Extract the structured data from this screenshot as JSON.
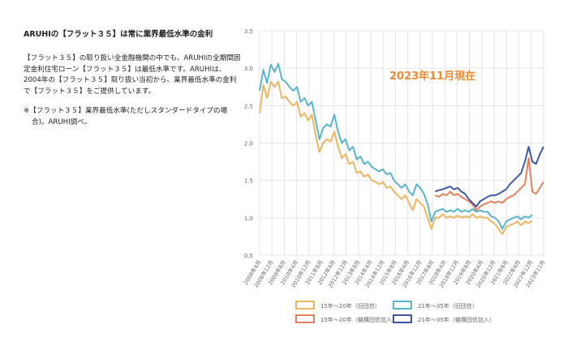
{
  "text": {
    "headline": "ARUHIの【フラット３５】は常に業界最低水準の金利",
    "body": "【フラット３５】の取り扱い全金融機関の中でも、ARUHIの全期間固定金利住宅ローン【フラット３５】は最低水準です。ARUHIは、2004年の【フラット３５】取り扱い当初から、業界最低水準の金利で【フラット３５】をご提供しています。",
    "note": "※【フラット３５】業界最低水準(ただしスタンダードタイプの場合)。ARUHI調べ。"
  },
  "chart_data": {
    "type": "line",
    "annotation": "2023年11月現在",
    "ylim": [
      0.5,
      3.5
    ],
    "y_ticks": [
      "0.5",
      "1.0",
      "1.5",
      "2.0",
      "2.5",
      "3.0",
      "3.5"
    ],
    "x_tick_labels": [
      "2008年4月",
      "2008年12月",
      "2009年8月",
      "2010年4月",
      "2010年12月",
      "2011年8月",
      "2012年4月",
      "2012年12月",
      "2013年8月",
      "2014年4月",
      "2014年12月",
      "2015年8月",
      "2016年4月",
      "2016年12月",
      "2017年8月",
      "2018年4月",
      "2018年12月",
      "2019年8月",
      "2020年4月",
      "2020年12月",
      "2021年8月",
      "2022年4月",
      "2022年12月",
      "2023年11月"
    ],
    "grid": true,
    "legend_position": "bottom",
    "series": [
      {
        "name": "15年～20年（旧団信）",
        "color": "#eeb55e",
        "points": [
          [
            0,
            2.4
          ],
          [
            1,
            2.78
          ],
          [
            2,
            2.6
          ],
          [
            3,
            2.82
          ],
          [
            4,
            2.75
          ],
          [
            5,
            2.82
          ],
          [
            6,
            2.6
          ],
          [
            7,
            2.62
          ],
          [
            8,
            2.55
          ],
          [
            9,
            2.5
          ],
          [
            10,
            2.55
          ],
          [
            11,
            2.35
          ],
          [
            12,
            2.4
          ],
          [
            13,
            2.3
          ],
          [
            14,
            2.38
          ],
          [
            15,
            2.1
          ],
          [
            16,
            1.88
          ],
          [
            17,
            2.0
          ],
          [
            18,
            2.05
          ],
          [
            19,
            2.02
          ],
          [
            20,
            2.15
          ],
          [
            21,
            1.95
          ],
          [
            22,
            1.8
          ],
          [
            23,
            1.85
          ],
          [
            24,
            1.72
          ],
          [
            25,
            1.75
          ],
          [
            26,
            1.6
          ],
          [
            27,
            1.62
          ],
          [
            28,
            1.55
          ],
          [
            29,
            1.58
          ],
          [
            30,
            1.5
          ],
          [
            31,
            1.48
          ],
          [
            32,
            1.45
          ],
          [
            33,
            1.48
          ],
          [
            34,
            1.4
          ],
          [
            35,
            1.42
          ],
          [
            36,
            1.35
          ],
          [
            37,
            1.3
          ],
          [
            38,
            1.25
          ],
          [
            39,
            1.3
          ],
          [
            40,
            1.2
          ],
          [
            41,
            1.1
          ],
          [
            42,
            1.25
          ],
          [
            43,
            1.2
          ],
          [
            44,
            1.15
          ],
          [
            45,
            1.0
          ],
          [
            46,
            0.85
          ],
          [
            47,
            1.0
          ],
          [
            48,
            1.0
          ],
          [
            49,
            1.05
          ],
          [
            50,
            1.0
          ],
          [
            51,
            1.02
          ],
          [
            52,
            1.0
          ],
          [
            53,
            1.03
          ],
          [
            54,
            1.0
          ],
          [
            55,
            1.02
          ],
          [
            56,
            1.0
          ],
          [
            57,
            1.05
          ],
          [
            58,
            1.0
          ],
          [
            59,
            1.02
          ],
          [
            60,
            1.0
          ],
          [
            61,
            1.0
          ],
          [
            62,
            0.95
          ],
          [
            63,
            0.92
          ],
          [
            64,
            0.85
          ],
          [
            65,
            0.78
          ],
          [
            66,
            0.88
          ],
          [
            67,
            0.9
          ],
          [
            68,
            0.92
          ],
          [
            69,
            0.95
          ],
          [
            70,
            0.9
          ],
          [
            71,
            0.95
          ],
          [
            72,
            0.93
          ],
          [
            73,
            0.96
          ]
        ]
      },
      {
        "name": "21年～35年（旧団信）",
        "color": "#59b4cd",
        "points": [
          [
            0,
            2.7
          ],
          [
            1,
            2.98
          ],
          [
            2,
            2.8
          ],
          [
            3,
            3.05
          ],
          [
            4,
            2.95
          ],
          [
            5,
            3.06
          ],
          [
            6,
            2.85
          ],
          [
            7,
            2.82
          ],
          [
            8,
            2.75
          ],
          [
            9,
            2.7
          ],
          [
            10,
            2.75
          ],
          [
            11,
            2.55
          ],
          [
            12,
            2.6
          ],
          [
            13,
            2.5
          ],
          [
            14,
            2.55
          ],
          [
            15,
            2.3
          ],
          [
            16,
            2.05
          ],
          [
            17,
            2.2
          ],
          [
            18,
            2.25
          ],
          [
            19,
            2.22
          ],
          [
            20,
            2.38
          ],
          [
            21,
            2.15
          ],
          [
            22,
            2.0
          ],
          [
            23,
            2.05
          ],
          [
            24,
            1.9
          ],
          [
            25,
            1.95
          ],
          [
            26,
            1.78
          ],
          [
            27,
            1.82
          ],
          [
            28,
            1.72
          ],
          [
            29,
            1.75
          ],
          [
            30,
            1.68
          ],
          [
            31,
            1.65
          ],
          [
            32,
            1.62
          ],
          [
            33,
            1.65
          ],
          [
            34,
            1.58
          ],
          [
            35,
            1.6
          ],
          [
            36,
            1.5
          ],
          [
            37,
            1.45
          ],
          [
            38,
            1.4
          ],
          [
            39,
            1.45
          ],
          [
            40,
            1.35
          ],
          [
            41,
            1.3
          ],
          [
            42,
            1.45
          ],
          [
            43,
            1.4
          ],
          [
            44,
            1.32
          ],
          [
            45,
            1.18
          ],
          [
            46,
            0.95
          ],
          [
            47,
            1.08
          ],
          [
            48,
            1.1
          ],
          [
            49,
            1.12
          ],
          [
            50,
            1.08
          ],
          [
            51,
            1.1
          ],
          [
            52,
            1.08
          ],
          [
            53,
            1.12
          ],
          [
            54,
            1.08
          ],
          [
            55,
            1.1
          ],
          [
            56,
            1.08
          ],
          [
            57,
            1.12
          ],
          [
            58,
            1.08
          ],
          [
            59,
            1.1
          ],
          [
            60,
            1.08
          ],
          [
            61,
            1.08
          ],
          [
            62,
            1.02
          ],
          [
            63,
            1.0
          ],
          [
            64,
            0.95
          ],
          [
            65,
            0.85
          ],
          [
            66,
            0.95
          ],
          [
            67,
            0.98
          ],
          [
            68,
            1.0
          ],
          [
            69,
            1.02
          ],
          [
            70,
            0.98
          ],
          [
            71,
            1.02
          ],
          [
            72,
            1.0
          ],
          [
            73,
            1.04
          ]
        ]
      },
      {
        "name": "15年～20年（機構団信加入）",
        "color": "#e5815c",
        "points": [
          [
            47,
            1.3
          ],
          [
            48,
            1.28
          ],
          [
            49,
            1.32
          ],
          [
            50,
            1.3
          ],
          [
            51,
            1.35
          ],
          [
            52,
            1.3
          ],
          [
            53,
            1.32
          ],
          [
            54,
            1.28
          ],
          [
            55,
            1.25
          ],
          [
            56,
            1.22
          ],
          [
            57,
            1.18
          ],
          [
            58,
            1.1
          ],
          [
            59,
            1.15
          ],
          [
            60,
            1.18
          ],
          [
            61,
            1.2
          ],
          [
            62,
            1.22
          ],
          [
            63,
            1.2
          ],
          [
            64,
            1.22
          ],
          [
            65,
            1.2
          ],
          [
            66,
            1.25
          ],
          [
            67,
            1.28
          ],
          [
            68,
            1.3
          ],
          [
            69,
            1.35
          ],
          [
            70,
            1.4
          ],
          [
            71,
            1.45
          ],
          [
            72,
            1.8
          ],
          [
            73,
            1.35
          ],
          [
            74,
            1.32
          ],
          [
            75,
            1.4
          ],
          [
            76,
            1.48
          ]
        ]
      },
      {
        "name": "21年～35年（機構団信加入）",
        "color": "#3c5aa3",
        "points": [
          [
            47,
            1.35
          ],
          [
            48,
            1.37
          ],
          [
            49,
            1.38
          ],
          [
            50,
            1.4
          ],
          [
            51,
            1.42
          ],
          [
            52,
            1.38
          ],
          [
            53,
            1.4
          ],
          [
            54,
            1.35
          ],
          [
            55,
            1.32
          ],
          [
            56,
            1.25
          ],
          [
            57,
            1.2
          ],
          [
            58,
            1.15
          ],
          [
            59,
            1.22
          ],
          [
            60,
            1.25
          ],
          [
            61,
            1.28
          ],
          [
            62,
            1.3
          ],
          [
            63,
            1.3
          ],
          [
            64,
            1.32
          ],
          [
            65,
            1.35
          ],
          [
            66,
            1.38
          ],
          [
            67,
            1.45
          ],
          [
            68,
            1.5
          ],
          [
            69,
            1.55
          ],
          [
            70,
            1.6
          ],
          [
            71,
            1.75
          ],
          [
            72,
            1.95
          ],
          [
            73,
            1.75
          ],
          [
            74,
            1.72
          ],
          [
            75,
            1.85
          ],
          [
            76,
            1.95
          ]
        ]
      }
    ]
  }
}
